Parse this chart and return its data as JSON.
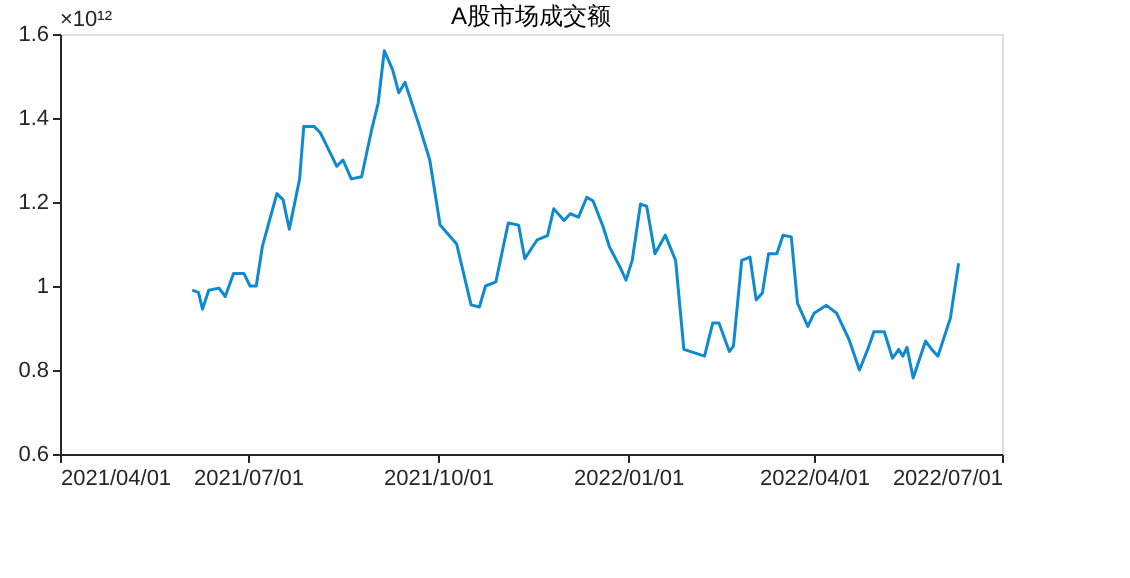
{
  "chart_data": {
    "type": "line",
    "title": "A股市场成交额",
    "annotations": [
      "×10¹²"
    ],
    "xlim": [
      "2021-04-01",
      "2022-07-01"
    ],
    "xticks": [
      {
        "value": "2021-04-01",
        "label": "2021/04/01"
      },
      {
        "value": "2021-07-01",
        "label": "2021/07/01"
      },
      {
        "value": "2021-10-01",
        "label": "2021/10/01"
      },
      {
        "value": "2022-01-01",
        "label": "2022/01/01"
      },
      {
        "value": "2022-04-01",
        "label": "2022/04/01"
      },
      {
        "value": "2022-07-01",
        "label": "2022/07/01"
      }
    ],
    "ylim": [
      0.6,
      1.6
    ],
    "yticks": [
      0.6,
      0.8,
      1,
      1.2,
      1.4,
      1.6
    ],
    "grid": false,
    "marker": "none",
    "line_style": "solid",
    "series": [
      {
        "color": "#0e8ad0",
        "x": [
          "2021-06-04",
          "2021-06-07",
          "2021-06-09",
          "2021-06-12",
          "2021-06-17",
          "2021-06-20",
          "2021-06-24",
          "2021-06-29",
          "2021-07-02",
          "2021-07-05",
          "2021-07-08",
          "2021-07-15",
          "2021-07-18",
          "2021-07-21",
          "2021-07-26",
          "2021-07-28",
          "2021-08-02",
          "2021-08-05",
          "2021-08-13",
          "2021-08-16",
          "2021-08-20",
          "2021-08-25",
          "2021-08-30",
          "2021-09-02",
          "2021-09-05",
          "2021-09-09",
          "2021-09-12",
          "2021-09-15",
          "2021-09-22",
          "2021-09-27",
          "2021-10-02",
          "2021-10-10",
          "2021-10-17",
          "2021-10-21",
          "2021-10-24",
          "2021-10-29",
          "2021-11-04",
          "2021-11-09",
          "2021-11-12",
          "2021-11-18",
          "2021-11-23",
          "2021-11-26",
          "2021-12-01",
          "2021-12-04",
          "2021-12-08",
          "2021-12-12",
          "2021-12-15",
          "2021-12-20",
          "2021-12-23",
          "2021-12-28",
          "2021-12-31",
          "2022-01-03",
          "2022-01-07",
          "2022-01-10",
          "2022-01-14",
          "2022-01-19",
          "2022-01-24",
          "2022-01-28",
          "2022-02-07",
          "2022-02-11",
          "2022-02-14",
          "2022-02-19",
          "2022-02-21",
          "2022-02-25",
          "2022-03-01",
          "2022-03-04",
          "2022-03-07",
          "2022-03-10",
          "2022-03-14",
          "2022-03-17",
          "2022-03-21",
          "2022-03-24",
          "2022-03-29",
          "2022-04-01",
          "2022-04-07",
          "2022-04-12",
          "2022-04-18",
          "2022-04-23",
          "2022-04-27",
          "2022-04-30",
          "2022-05-05",
          "2022-05-09",
          "2022-05-12",
          "2022-05-14",
          "2022-05-16",
          "2022-05-19",
          "2022-05-22",
          "2022-05-25",
          "2022-05-28",
          "2022-05-31",
          "2022-06-06",
          "2022-06-10"
        ],
        "values": [
          0.99,
          0.985,
          0.945,
          0.99,
          0.995,
          0.975,
          1.03,
          1.03,
          1.0,
          1.0,
          1.095,
          1.22,
          1.205,
          1.135,
          1.255,
          1.38,
          1.38,
          1.365,
          1.285,
          1.3,
          1.255,
          1.26,
          1.375,
          1.435,
          1.56,
          1.515,
          1.46,
          1.485,
          1.38,
          1.3,
          1.145,
          1.1,
          0.955,
          0.95,
          1.0,
          1.01,
          1.15,
          1.145,
          1.065,
          1.11,
          1.12,
          1.184,
          1.156,
          1.172,
          1.164,
          1.211,
          1.203,
          1.14,
          1.093,
          1.046,
          1.014,
          1.061,
          1.195,
          1.19,
          1.077,
          1.121,
          1.061,
          0.849,
          0.833,
          0.912,
          0.912,
          0.844,
          0.857,
          1.061,
          1.069,
          0.967,
          0.983,
          1.077,
          1.077,
          1.121,
          1.117,
          0.959,
          0.904,
          0.935,
          0.954,
          0.935,
          0.872,
          0.8,
          0.849,
          0.891,
          0.891,
          0.828,
          0.849,
          0.833,
          0.854,
          0.781,
          0.825,
          0.869,
          0.849,
          0.833,
          0.923,
          1.054
        ]
      }
    ]
  }
}
